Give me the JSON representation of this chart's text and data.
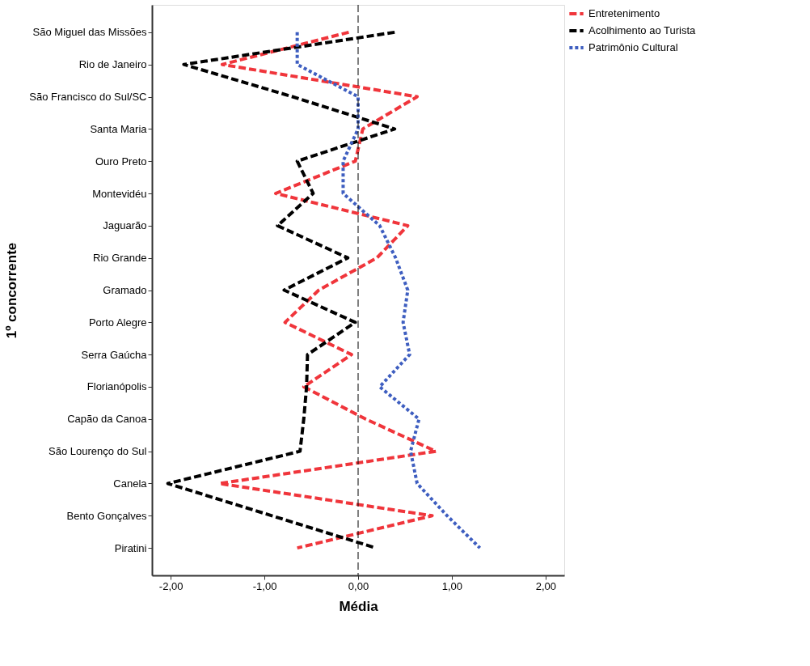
{
  "chart_data": {
    "type": "line",
    "orientation": "horizontal",
    "xlabel": "Média",
    "ylabel": "1º concorrente",
    "categories": [
      "São Miguel das Missões",
      "Rio de Janeiro",
      "São Francisco do Sul/SC",
      "Santa Maria",
      "Ouro Preto",
      "Montevidéu",
      "Jaguarão",
      "Rio Grande",
      "Gramado",
      "Porto Alegre",
      "Serra Gaúcha",
      "Florianópolis",
      "Capão da Canoa",
      "São Lourenço do Sul",
      "Canela",
      "Bento Gonçalves",
      "Piratini"
    ],
    "series": [
      {
        "name": "Entretenimento",
        "color": "#f0353b",
        "line_style": "dashed",
        "values": [
          -0.1,
          -1.45,
          0.63,
          0.05,
          -0.03,
          -0.88,
          0.53,
          0.2,
          -0.42,
          -0.78,
          -0.07,
          -0.58,
          0.08,
          0.83,
          -1.48,
          0.79,
          -0.65
        ]
      },
      {
        "name": "Acolhimento ao Turista",
        "color": "#000000",
        "line_style": "dashed",
        "values": [
          0.39,
          -1.86,
          -0.7,
          0.39,
          -0.65,
          -0.48,
          -0.86,
          -0.11,
          -0.79,
          -0.03,
          -0.54,
          -0.55,
          -0.58,
          -0.62,
          -2.03,
          -0.92,
          0.19
        ]
      },
      {
        "name": "Patrimônio Cultural",
        "color": "#3e5ec0",
        "line_style": "dotted",
        "values": [
          -0.65,
          -0.65,
          0.0,
          0.0,
          -0.16,
          -0.16,
          0.23,
          0.4,
          0.53,
          0.48,
          0.55,
          0.23,
          0.65,
          0.56,
          0.63,
          0.95,
          1.3
        ]
      }
    ],
    "xlim": [
      -2.2,
      2.2
    ],
    "xticks": [
      {
        "value": -2,
        "label": "-2,00"
      },
      {
        "value": -1,
        "label": "-1,00"
      },
      {
        "value": 0,
        "label": "0,00"
      },
      {
        "value": 1,
        "label": "1,00"
      },
      {
        "value": 2,
        "label": "2,00"
      }
    ],
    "ref_lines": [
      {
        "axis": "x",
        "value": 0,
        "color": "#000000",
        "line_style": "dashed"
      }
    ],
    "grid": false,
    "legend": "top right"
  }
}
